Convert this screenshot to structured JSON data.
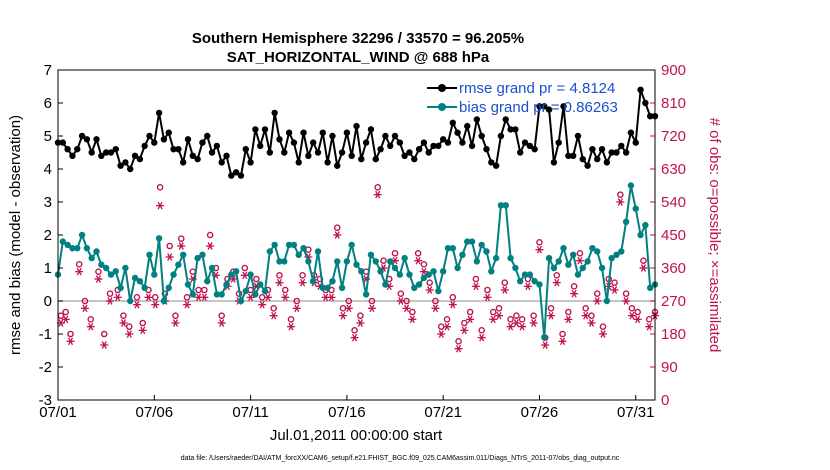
{
  "figure": {
    "title_line1": "Southern Hemisphere 32296 / 33570 = 96.205%",
    "title_line2": "SAT_HORIZONTAL_WIND @ 688 hPa",
    "footnote": "data file: /Users/raeder/DAI/ATM_forcXX/CAM6_setup/f.e21.FHIST_BGC.f09_025.CAM6assim.011/Diags_NTrS_2011-07/obs_diag_output.nc"
  },
  "chart_data": {
    "type": "line",
    "xlabel": "Jul.01,2011 00:00:00 start",
    "ylabel": "rmse and bias (model - observation)",
    "ylabel_right": "# of obs: o=possible; ×=assimilated",
    "xlim": [
      0,
      31
    ],
    "ylim": [
      -3,
      7
    ],
    "ylim_right": [
      0,
      900
    ],
    "xtick_values": [
      0,
      5,
      10,
      15,
      20,
      25,
      30
    ],
    "xtick_labels": [
      "07/01",
      "07/06",
      "07/11",
      "07/16",
      "07/21",
      "07/26",
      "07/31"
    ],
    "ytick_values": [
      -3,
      -2,
      -1,
      0,
      1,
      2,
      3,
      4,
      5,
      6,
      7
    ],
    "ytick_labels": [
      "-3",
      "-2",
      "-1",
      "0",
      "1",
      "2",
      "3",
      "4",
      "5",
      "6",
      "7"
    ],
    "ytick_right_values": [
      0,
      90,
      180,
      270,
      360,
      450,
      540,
      630,
      720,
      810,
      900
    ],
    "ytick_right_labels": [
      "0",
      "90",
      "180",
      "270",
      "360",
      "450",
      "540",
      "630",
      "720",
      "810",
      "900"
    ],
    "grid": false,
    "legend_position": "top-right",
    "colors": {
      "rmse": "#000000",
      "bias": "#008080",
      "obs": "#c0134f",
      "zero_line": "#b3b3b3"
    },
    "series": [
      {
        "name": "rmse grand pr = 4.8124",
        "axis": "left",
        "marker": "filled-circle",
        "x": [
          0,
          0.25,
          0.5,
          0.75,
          1,
          1.25,
          1.5,
          1.75,
          2,
          2.25,
          2.5,
          2.75,
          3,
          3.25,
          3.5,
          3.75,
          4,
          4.25,
          4.5,
          4.75,
          5,
          5.25,
          5.5,
          5.75,
          6,
          6.25,
          6.5,
          6.75,
          7,
          7.25,
          7.5,
          7.75,
          8,
          8.25,
          8.5,
          8.75,
          9,
          9.25,
          9.5,
          9.75,
          10,
          10.25,
          10.5,
          10.75,
          11,
          11.25,
          11.5,
          11.75,
          12,
          12.25,
          12.5,
          12.75,
          13,
          13.25,
          13.5,
          13.75,
          14,
          14.25,
          14.5,
          14.75,
          15,
          15.25,
          15.5,
          15.75,
          16,
          16.25,
          16.5,
          16.75,
          17,
          17.25,
          17.5,
          17.75,
          18,
          18.25,
          18.5,
          18.75,
          19,
          19.25,
          19.5,
          19.75,
          20,
          20.25,
          20.5,
          20.75,
          21,
          21.25,
          21.5,
          21.75,
          22,
          22.25,
          22.5,
          22.75,
          23,
          23.25,
          23.5,
          23.75,
          24,
          24.25,
          24.5,
          24.75,
          25,
          25.25,
          25.5,
          25.75,
          26,
          26.25,
          26.5,
          26.75,
          27,
          27.25,
          27.5,
          27.75,
          28,
          28.25,
          28.5,
          28.75,
          29,
          29.25,
          29.5,
          29.75,
          30,
          30.25,
          30.5,
          30.75,
          31
        ],
        "values": [
          4.8,
          4.8,
          4.6,
          4.4,
          4.6,
          5.0,
          4.9,
          4.5,
          4.9,
          4.4,
          4.5,
          4.5,
          4.6,
          4.1,
          4.2,
          4.0,
          4.4,
          4.3,
          4.7,
          5.0,
          4.8,
          5.7,
          4.9,
          5.1,
          4.6,
          4.6,
          4.2,
          4.9,
          4.4,
          4.3,
          4.8,
          5.0,
          4.5,
          4.7,
          4.2,
          4.4,
          3.8,
          3.9,
          3.8,
          4.6,
          4.2,
          5.2,
          4.7,
          5.2,
          4.5,
          5.7,
          4.9,
          4.5,
          5.1,
          4.8,
          4.2,
          5.1,
          4.4,
          4.8,
          4.5,
          5.1,
          4.2,
          5.0,
          4.1,
          4.5,
          5.1,
          4.4,
          5.3,
          4.3,
          4.8,
          5.2,
          4.3,
          4.6,
          5.0,
          4.7,
          5.0,
          4.8,
          4.4,
          4.5,
          4.3,
          4.6,
          4.8,
          4.5,
          4.7,
          4.7,
          4.9,
          4.8,
          5.4,
          5.1,
          4.8,
          5.3,
          4.7,
          5.5,
          5.0,
          4.6,
          4.2,
          4.1,
          5.0,
          5.5,
          5.2,
          5.2,
          4.5,
          4.8,
          4.7,
          4.6,
          5.9,
          5.9,
          5.8,
          4.2,
          4.8,
          5.9,
          4.4,
          4.4,
          5.0,
          4.3,
          4.1,
          4.6,
          4.3,
          4.6,
          4.2,
          4.5,
          4.5,
          4.7,
          4.5,
          5.1,
          4.8,
          6.4,
          6.0,
          5.6,
          5.6
        ],
        "values_comment": ""
      },
      {
        "name": "bias grand pr = 0.86263",
        "axis": "left",
        "marker": "filled-circle",
        "x": [
          0,
          0.25,
          0.5,
          0.75,
          1,
          1.25,
          1.5,
          1.75,
          2,
          2.25,
          2.5,
          2.75,
          3,
          3.25,
          3.5,
          3.75,
          4,
          4.25,
          4.5,
          4.75,
          5,
          5.25,
          5.5,
          5.75,
          6,
          6.25,
          6.5,
          6.75,
          7,
          7.25,
          7.5,
          7.75,
          8,
          8.25,
          8.5,
          8.75,
          9,
          9.25,
          9.5,
          9.75,
          10,
          10.25,
          10.5,
          10.75,
          11,
          11.25,
          11.5,
          11.75,
          12,
          12.25,
          12.5,
          12.75,
          13,
          13.25,
          13.5,
          13.75,
          14,
          14.25,
          14.5,
          14.75,
          15,
          15.25,
          15.5,
          15.75,
          16,
          16.25,
          16.5,
          16.75,
          17,
          17.25,
          17.5,
          17.75,
          18,
          18.25,
          18.5,
          18.75,
          19,
          19.25,
          19.5,
          19.75,
          20,
          20.25,
          20.5,
          20.75,
          21,
          21.25,
          21.5,
          21.75,
          22,
          22.25,
          22.5,
          22.75,
          23,
          23.25,
          23.5,
          23.75,
          24,
          24.25,
          24.5,
          24.75,
          25,
          25.25,
          25.5,
          25.75,
          26,
          26.25,
          26.5,
          26.75,
          27,
          27.25,
          27.5,
          27.75,
          28,
          28.25,
          28.5,
          28.75,
          29,
          29.25,
          29.5,
          29.75,
          30,
          30.25,
          30.5,
          30.75,
          31
        ],
        "values": [
          0.8,
          1.8,
          1.7,
          1.6,
          1.6,
          2.0,
          1.6,
          1.3,
          1.5,
          1.1,
          1.0,
          0.8,
          0.9,
          0.4,
          1.0,
          0.0,
          0.7,
          0.6,
          0.4,
          1.4,
          0.8,
          1.9,
          0.0,
          0.4,
          0.8,
          1.1,
          1.4,
          0.5,
          0.2,
          1.3,
          1.4,
          0.6,
          1.0,
          0.2,
          0.2,
          0.5,
          0.8,
          0.9,
          0.0,
          0.3,
          0.8,
          0.2,
          0.5,
          0.3,
          1.5,
          1.7,
          1.2,
          1.2,
          1.7,
          1.7,
          1.4,
          1.6,
          1.2,
          0.6,
          1.5,
          0.4,
          0.4,
          0.6,
          1.2,
          0.4,
          1.2,
          1.7,
          1.1,
          0.9,
          0.2,
          1.4,
          1.2,
          0.9,
          0.5,
          1.2,
          1.0,
          0.8,
          1.3,
          0.8,
          0.4,
          0.5,
          0.7,
          0.8,
          0.9,
          0.3,
          0.9,
          1.6,
          1.6,
          1.0,
          1.4,
          1.8,
          1.8,
          1.2,
          1.7,
          1.5,
          0.9,
          1.3,
          2.9,
          2.9,
          1.3,
          1.0,
          0.6,
          0.8,
          0.8,
          0.6,
          0.5,
          -1.1,
          1.3,
          1.0,
          1.2,
          1.6,
          1.1,
          1.4,
          0.8,
          1.0,
          1.2,
          1.6,
          1.5,
          1.0,
          0.0,
          1.3,
          1.4,
          1.5,
          2.4,
          3.5,
          2.8,
          2.0,
          2.3,
          0.4,
          0.5
        ],
        "values_comment": ""
      },
      {
        "name": "",
        "kind": "obs-possible",
        "axis": "right",
        "marker": "open-circle",
        "x": [
          0.15,
          0.4,
          0.65,
          1.1,
          1.4,
          1.7,
          2.1,
          2.4,
          2.7,
          3.1,
          3.4,
          3.7,
          4.1,
          4.4,
          4.7,
          5.05,
          5.3,
          5.55,
          5.8,
          6.1,
          6.4,
          6.7,
          7.0,
          7.3,
          7.6,
          7.9,
          8.2,
          8.5,
          8.8,
          9.1,
          9.4,
          9.7,
          10.0,
          10.3,
          10.6,
          10.9,
          11.2,
          11.5,
          11.8,
          12.1,
          12.4,
          12.7,
          13.0,
          13.3,
          13.6,
          13.9,
          14.2,
          14.5,
          14.8,
          15.1,
          15.4,
          15.7,
          16.0,
          16.3,
          16.6,
          16.9,
          17.2,
          17.5,
          17.8,
          18.1,
          18.4,
          18.7,
          19.0,
          19.3,
          19.6,
          19.9,
          20.2,
          20.5,
          20.8,
          21.1,
          21.4,
          21.7,
          22.0,
          22.3,
          22.6,
          22.9,
          23.2,
          23.5,
          23.8,
          24.1,
          24.4,
          24.7,
          25.0,
          25.3,
          25.6,
          25.9,
          26.2,
          26.5,
          26.8,
          27.1,
          27.4,
          27.7,
          28.0,
          28.3,
          28.6,
          28.9,
          29.2,
          29.5,
          29.8,
          30.1,
          30.4,
          30.7,
          31.0
        ],
        "values": [
          230,
          240,
          180,
          370,
          270,
          220,
          350,
          180,
          290,
          300,
          230,
          200,
          280,
          210,
          300,
          280,
          580,
          290,
          420,
          230,
          440,
          280,
          350,
          300,
          300,
          450,
          360,
          230,
          330,
          350,
          290,
          360,
          300,
          330,
          280,
          300,
          250,
          340,
          300,
          220,
          270,
          340,
          410,
          340,
          330,
          300,
          300,
          470,
          250,
          270,
          190,
          230,
          350,
          270,
          580,
          380,
          330,
          400,
          290,
          270,
          240,
          400,
          370,
          320,
          270,
          200,
          220,
          280,
          160,
          210,
          240,
          330,
          190,
          300,
          240,
          250,
          320,
          220,
          230,
          220,
          330,
          230,
          430,
          170,
          250,
          340,
          180,
          240,
          310,
          400,
          250,
          230,
          290,
          200,
          330,
          320,
          560,
          290,
          250,
          240,
          380,
          220,
          240
        ],
        "values_comment": ""
      },
      {
        "name": "",
        "kind": "obs-assimilated",
        "axis": "right",
        "marker": "asterisk",
        "x": [
          0.15,
          0.4,
          0.65,
          1.1,
          1.4,
          1.7,
          2.1,
          2.4,
          2.7,
          3.1,
          3.4,
          3.7,
          4.1,
          4.4,
          4.7,
          5.05,
          5.3,
          5.55,
          5.8,
          6.1,
          6.4,
          6.7,
          7.0,
          7.3,
          7.6,
          7.9,
          8.2,
          8.5,
          8.8,
          9.1,
          9.4,
          9.7,
          10.0,
          10.3,
          10.6,
          10.9,
          11.2,
          11.5,
          11.8,
          12.1,
          12.4,
          12.7,
          13.0,
          13.3,
          13.6,
          13.9,
          14.2,
          14.5,
          14.8,
          15.1,
          15.4,
          15.7,
          16.0,
          16.3,
          16.6,
          16.9,
          17.2,
          17.5,
          17.8,
          18.1,
          18.4,
          18.7,
          19.0,
          19.3,
          19.6,
          19.9,
          20.2,
          20.5,
          20.8,
          21.1,
          21.4,
          21.7,
          22.0,
          22.3,
          22.6,
          22.9,
          23.2,
          23.5,
          23.8,
          24.1,
          24.4,
          24.7,
          25.0,
          25.3,
          25.6,
          25.9,
          26.2,
          26.5,
          26.8,
          27.1,
          27.4,
          27.7,
          28.0,
          28.3,
          28.6,
          28.9,
          29.2,
          29.5,
          29.8,
          30.1,
          30.4,
          30.7,
          31.0
        ],
        "values": [
          210,
          220,
          160,
          350,
          250,
          200,
          330,
          150,
          270,
          280,
          210,
          180,
          260,
          190,
          280,
          260,
          530,
          270,
          390,
          210,
          420,
          260,
          330,
          280,
          280,
          420,
          340,
          210,
          310,
          330,
          270,
          340,
          280,
          310,
          260,
          280,
          230,
          320,
          280,
          200,
          250,
          320,
          390,
          320,
          310,
          280,
          280,
          450,
          230,
          250,
          170,
          210,
          330,
          250,
          560,
          360,
          310,
          380,
          270,
          250,
          220,
          380,
          350,
          300,
          250,
          180,
          200,
          260,
          140,
          190,
          220,
          310,
          170,
          280,
          220,
          230,
          300,
          200,
          210,
          200,
          310,
          210,
          410,
          150,
          230,
          320,
          160,
          220,
          290,
          380,
          230,
          210,
          270,
          180,
          310,
          300,
          540,
          270,
          230,
          220,
          360,
          200,
          230
        ],
        "values_comment": ""
      }
    ]
  }
}
